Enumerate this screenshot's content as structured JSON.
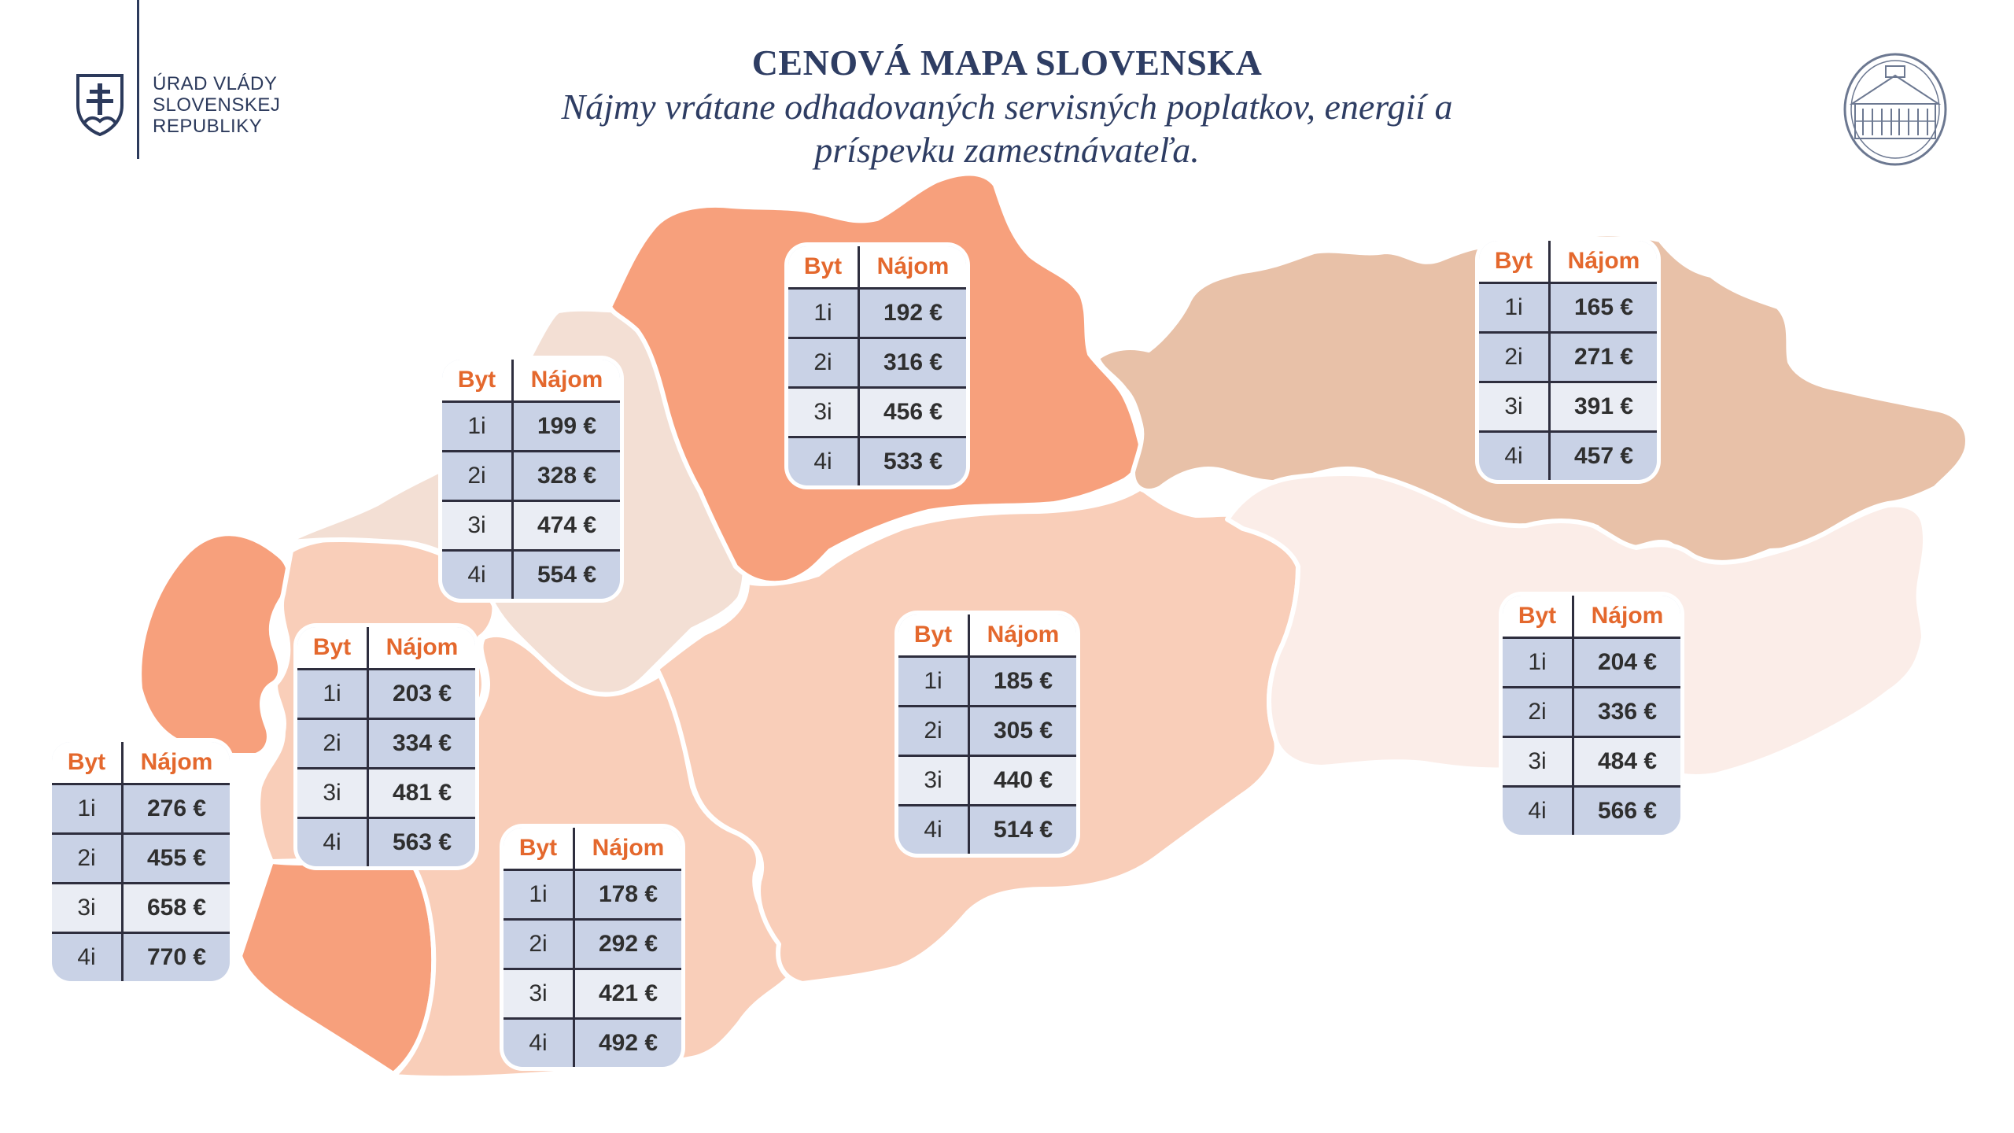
{
  "header": {
    "organization_line1": "ÚRAD VLÁDY",
    "organization_line2": "SLOVENSKEJ REPUBLIKY",
    "title": "CENOVÁ MAPA SLOVENSKA",
    "subtitle": "Nájmy vrátane odhadovaných servisných poplatkov, energií a príspevku zamestnávateľa."
  },
  "table_headers": {
    "flat": "Byt",
    "rent": "Nájom"
  },
  "colors": {
    "dark_orange": "#f7a07c",
    "peach": "#f9ceb9",
    "light_beige": "#f3dfd4",
    "tan": "#e8c1a8",
    "pale_pink": "#fbede8",
    "header_text": "#e4682d",
    "title_text": "#2e3d63"
  },
  "regions": [
    {
      "id": "bratislava",
      "rows": [
        {
          "flat": "1i",
          "rent": "276 €"
        },
        {
          "flat": "2i",
          "rent": "455 €"
        },
        {
          "flat": "3i",
          "rent": "658 €"
        },
        {
          "flat": "4i",
          "rent": "770 €"
        }
      ]
    },
    {
      "id": "trnava",
      "rows": [
        {
          "flat": "1i",
          "rent": "203 €"
        },
        {
          "flat": "2i",
          "rent": "334 €"
        },
        {
          "flat": "3i",
          "rent": "481 €"
        },
        {
          "flat": "4i",
          "rent": "563 €"
        }
      ]
    },
    {
      "id": "trencin",
      "rows": [
        {
          "flat": "1i",
          "rent": "199 €"
        },
        {
          "flat": "2i",
          "rent": "328 €"
        },
        {
          "flat": "3i",
          "rent": "474 €"
        },
        {
          "flat": "4i",
          "rent": "554 €"
        }
      ]
    },
    {
      "id": "nitra",
      "rows": [
        {
          "flat": "1i",
          "rent": "178 €"
        },
        {
          "flat": "2i",
          "rent": "292 €"
        },
        {
          "flat": "3i",
          "rent": "421 €"
        },
        {
          "flat": "4i",
          "rent": "492 €"
        }
      ]
    },
    {
      "id": "zilina",
      "rows": [
        {
          "flat": "1i",
          "rent": "192 €"
        },
        {
          "flat": "2i",
          "rent": "316 €"
        },
        {
          "flat": "3i",
          "rent": "456 €"
        },
        {
          "flat": "4i",
          "rent": "533 €"
        }
      ]
    },
    {
      "id": "banska-bystrica",
      "rows": [
        {
          "flat": "1i",
          "rent": "185 €"
        },
        {
          "flat": "2i",
          "rent": "305 €"
        },
        {
          "flat": "3i",
          "rent": "440 €"
        },
        {
          "flat": "4i",
          "rent": "514 €"
        }
      ]
    },
    {
      "id": "presov",
      "rows": [
        {
          "flat": "1i",
          "rent": "165 €"
        },
        {
          "flat": "2i",
          "rent": "271 €"
        },
        {
          "flat": "3i",
          "rent": "391 €"
        },
        {
          "flat": "4i",
          "rent": "457 €"
        }
      ]
    },
    {
      "id": "kosice",
      "rows": [
        {
          "flat": "1i",
          "rent": "204 €"
        },
        {
          "flat": "2i",
          "rent": "336 €"
        },
        {
          "flat": "3i",
          "rent": "484 €"
        },
        {
          "flat": "4i",
          "rent": "566 €"
        }
      ]
    }
  ]
}
